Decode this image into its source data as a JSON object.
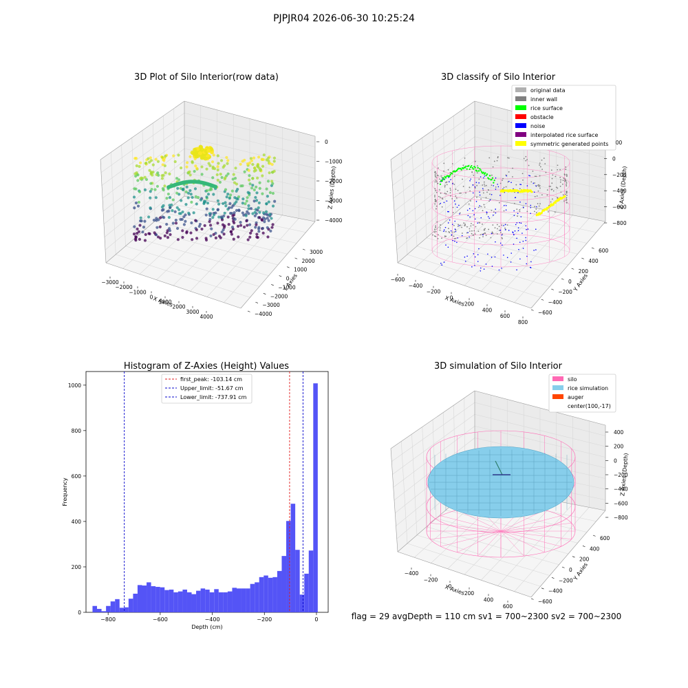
{
  "suptitle": "PJPJR04 2026-06-30 10:25:24",
  "colors": {
    "hist_bar": "#4b4bf5",
    "first_peak_line": "#e31a1c",
    "limit_line": "#0000cc",
    "pane": "#f2f2f2",
    "grid": "#d8d8d8",
    "silo": "#ff69b4",
    "rice": "#87ceeb",
    "noise": "#0000ff",
    "rice_surface": "#00ff00",
    "symmetric": "#ffff00",
    "inner_wall": "#808080"
  },
  "chart_data": [
    {
      "type": "scatter",
      "subtype": "3d",
      "title": "3D Plot of Silo Interior(row data)",
      "xlabel": "X Axies",
      "ylabel": "Y Axies",
      "zlabel": "Z Axies (Depth)",
      "x_ticks": [
        "−3000",
        "−2000",
        "−1000",
        "0",
        "1000",
        "2000",
        "3000",
        "4000"
      ],
      "y_ticks": [
        "−4000",
        "−3000",
        "−2000",
        "−1000",
        "0",
        "1000",
        "2000",
        "3000"
      ],
      "z_ticks": [
        "−4000",
        "−3000",
        "−2000",
        "−1000",
        "0"
      ],
      "xlim": [
        -3000,
        4000
      ],
      "ylim": [
        -4000,
        3000
      ],
      "zlim": [
        -4500,
        0
      ],
      "colormap": "viridis (by depth)",
      "grid": true
    },
    {
      "type": "scatter",
      "subtype": "3d",
      "title": "3D classify of Silo Interior",
      "xlabel": "X Axies",
      "ylabel": "Y Axies",
      "zlabel": "Z Axies (Depth)",
      "x_ticks": [
        "−600",
        "−400",
        "−200",
        "0",
        "200",
        "400",
        "600",
        "800"
      ],
      "y_ticks": [
        "−600",
        "−400",
        "−200",
        "0",
        "200",
        "400",
        "600"
      ],
      "z_ticks": [
        "−800",
        "−600",
        "−400",
        "−200",
        "0",
        "200"
      ],
      "legend_position": "top-right",
      "legend": [
        {
          "label": "original data",
          "color": "#b0b0b0"
        },
        {
          "label": "inner wall",
          "color": "#808080"
        },
        {
          "label": "rice surface",
          "color": "#00ff00"
        },
        {
          "label": "obstacle",
          "color": "#ff0000"
        },
        {
          "label": "noise",
          "color": "#0000ff"
        },
        {
          "label": "interpolated rice surface",
          "color": "#800080"
        },
        {
          "label": "symmetric generated points",
          "color": "#ffff00"
        }
      ],
      "grid": true
    },
    {
      "type": "bar",
      "subtype": "histogram",
      "title": "Histogram of Z-Axies (Height) Values",
      "xlabel": "Depth (cm)",
      "ylabel": "Frequency",
      "xlim": [
        -885,
        45
      ],
      "ylim": [
        0,
        1060
      ],
      "x_ticks": [
        -800,
        -600,
        -400,
        -200,
        0
      ],
      "x_tick_labels": [
        "−800",
        "−600",
        "−400",
        "−200",
        "0"
      ],
      "y_ticks": [
        0,
        200,
        400,
        600,
        800,
        1000
      ],
      "bin_start": -860,
      "bin_width": 17.3,
      "values": [
        28,
        15,
        5,
        28,
        48,
        58,
        20,
        22,
        60,
        82,
        120,
        118,
        132,
        115,
        112,
        110,
        98,
        100,
        88,
        92,
        100,
        88,
        80,
        95,
        105,
        100,
        88,
        102,
        88,
        88,
        92,
        108,
        105,
        105,
        105,
        125,
        132,
        155,
        162,
        152,
        155,
        182,
        248,
        402,
        478,
        275,
        78,
        170,
        272,
        1008
      ],
      "vlines": [
        {
          "label": "first_peak: -103.14 cm",
          "x": -103.14,
          "color": "#e31a1c"
        },
        {
          "label": "Upper_limit: -51.67 cm",
          "x": -51.67,
          "color": "#0000cc"
        },
        {
          "label": "Lower_limit: -737.91 cm",
          "x": -737.91,
          "color": "#0000cc"
        }
      ],
      "legend_position": "top-center"
    },
    {
      "type": "scatter",
      "subtype": "3d-surface",
      "title": "3D simulation of Silo Interior",
      "xlabel": "X Axies",
      "ylabel": "Y Axies",
      "zlabel": "Z Axies (Depth)",
      "x_ticks": [
        "−400",
        "−200",
        "0",
        "200",
        "400",
        "600"
      ],
      "y_ticks": [
        "−600",
        "−400",
        "−200",
        "0",
        "200",
        "400",
        "600"
      ],
      "z_ticks": [
        "−800",
        "−600",
        "−400",
        "−200",
        "0",
        "200",
        "400"
      ],
      "legend_position": "top-right",
      "legend": [
        {
          "label": "silo",
          "color": "#ff69b4"
        },
        {
          "label": "rice simulation",
          "color": "#87ceeb"
        },
        {
          "label": "auger",
          "color": "#ff4500"
        },
        {
          "label": "center(100,-17)",
          "color": ""
        }
      ],
      "grid": true
    }
  ],
  "footer": "flag = 29  avgDepth = 110 cm  sv1 = 700~2300  sv2 = 700~2300"
}
